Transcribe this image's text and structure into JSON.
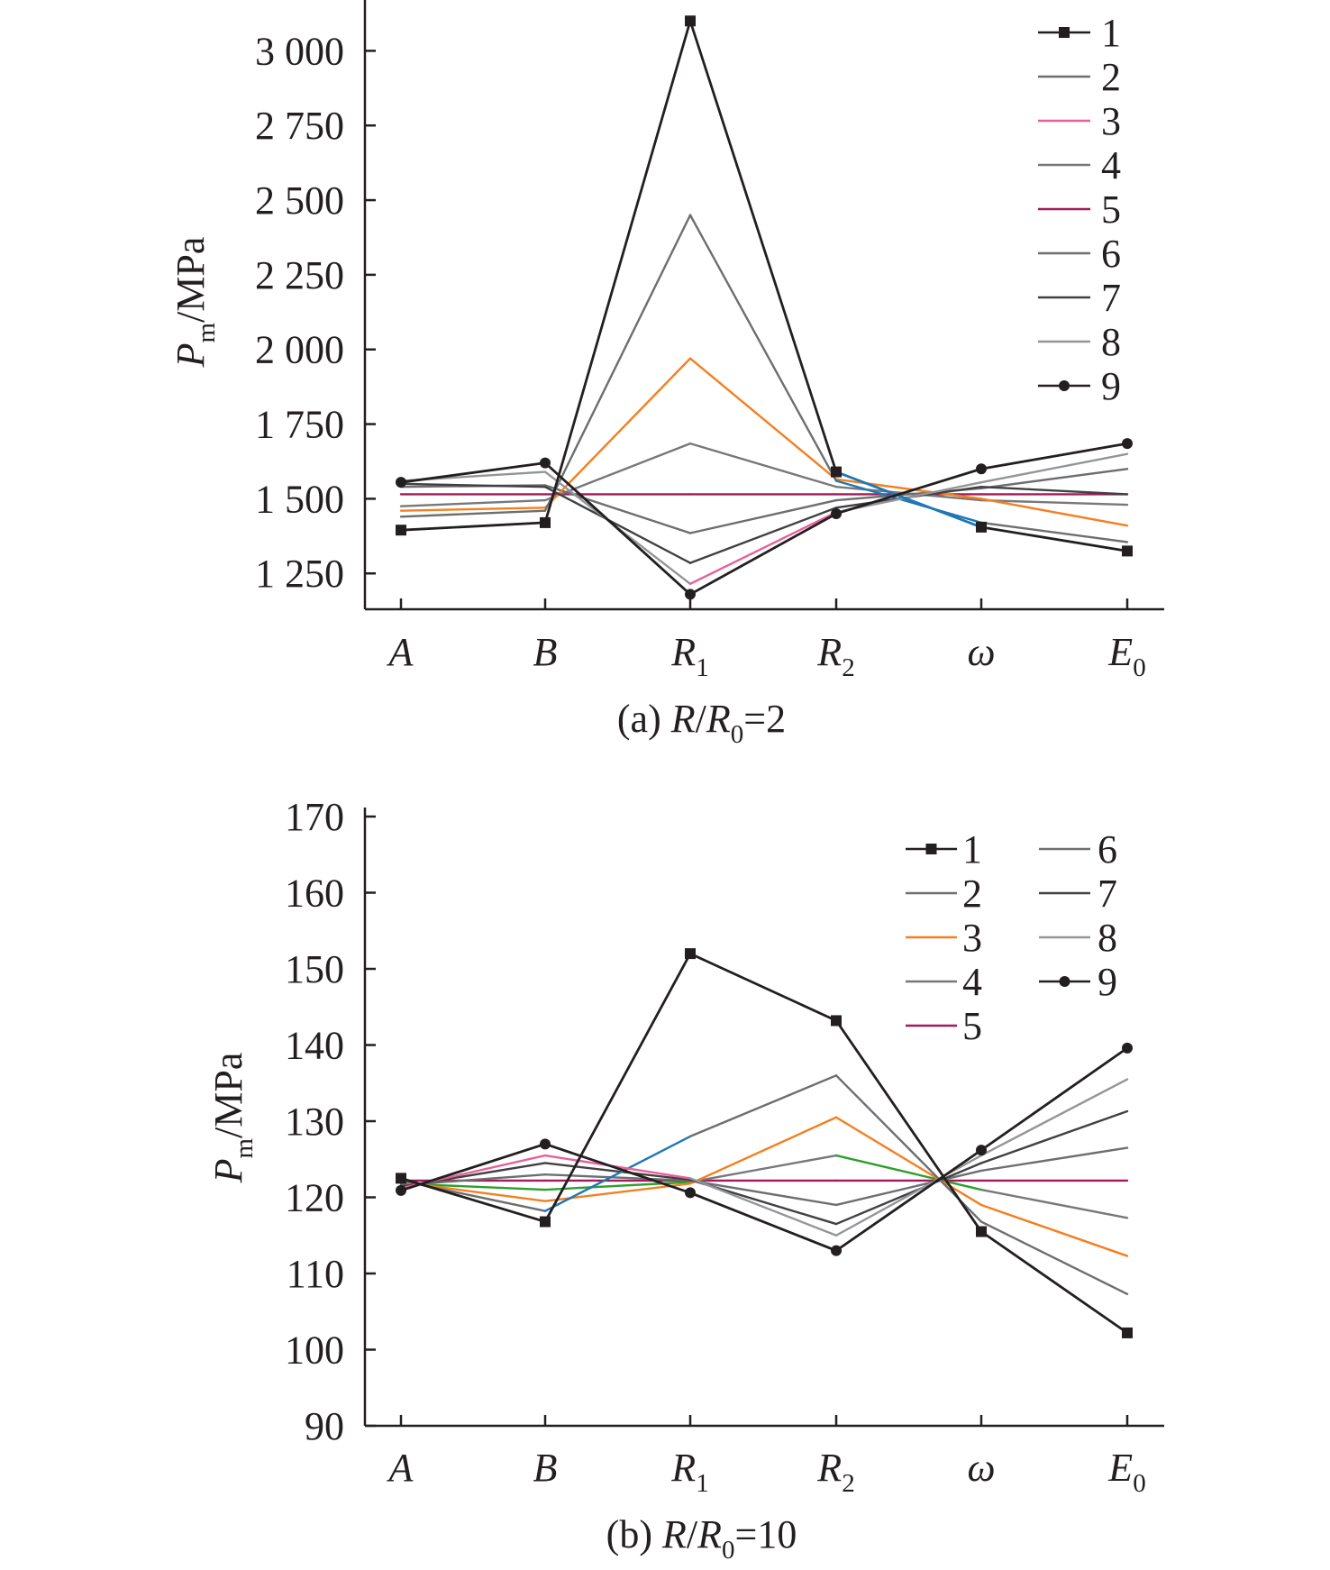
{
  "chart_data": [
    {
      "type": "line",
      "caption": {
        "prefix": "(a) ",
        "r": "R",
        "slash": "/",
        "r0": "R",
        "r0_sub": "0",
        "eq": "=2"
      },
      "ylabel": {
        "main": "P",
        "sub": "m",
        "unit": "/MPa"
      },
      "categories": [
        {
          "main": "A",
          "sub": ""
        },
        {
          "main": "B",
          "sub": ""
        },
        {
          "main": "R",
          "sub": "1"
        },
        {
          "main": "R",
          "sub": "2"
        },
        {
          "main": "ω",
          "sub": ""
        },
        {
          "main": "E",
          "sub": "0"
        }
      ],
      "ylim": [
        1130,
        3140
      ],
      "yticks": [
        1250,
        1500,
        1750,
        2000,
        2250,
        2500,
        2750,
        3000
      ],
      "ytick_labels": [
        "1 250",
        "1 500",
        "1 750",
        "2 000",
        "2 250",
        "2 500",
        "2 750",
        "3 000"
      ],
      "legend": {
        "placement": "top-right",
        "columns": 1
      },
      "series": [
        {
          "name": "1",
          "marker": "square",
          "color": "#231f20",
          "segment_colors": [
            "#231f20",
            "#231f20",
            "#231f20",
            "#1f77b4",
            "#231f20"
          ],
          "values": [
            1395,
            1420,
            3100,
            1590,
            1405,
            1325
          ]
        },
        {
          "name": "2",
          "marker": "none",
          "color": "#6d6e71",
          "segment_colors": [
            "#6d6e71",
            "#6d6e71",
            "#6d6e71",
            "#1f77b4",
            "#6d6e71"
          ],
          "values": [
            1440,
            1460,
            2450,
            1560,
            1420,
            1355
          ]
        },
        {
          "name": "3",
          "marker": "none",
          "color": "#e8609a",
          "segment_colors": [
            "#f47f20",
            "#f47f20",
            "#f47f20",
            "#f47f20",
            "#f47f20"
          ],
          "values": [
            1460,
            1470,
            1970,
            1565,
            1500,
            1410
          ]
        },
        {
          "name": "4",
          "marker": "none",
          "color": "#77787b",
          "segment_colors": [
            "#77787b",
            "#77787b",
            "#77787b",
            "#77787b",
            "#77787b"
          ],
          "values": [
            1475,
            1495,
            1685,
            1540,
            1495,
            1480
          ]
        },
        {
          "name": "5",
          "marker": "none",
          "color": "#a3195b",
          "segment_colors": [
            "#a3195b",
            "#a3195b",
            "#a3195b",
            "#a3195b",
            "#a3195b"
          ],
          "values": [
            1515,
            1515,
            1515,
            1515,
            1515,
            1515
          ]
        },
        {
          "name": "6",
          "marker": "none",
          "color": "#6d6e71",
          "segment_colors": [
            "#6d6e71",
            "#6d6e71",
            "#6d6e71",
            "#6d6e71",
            "#6d6e71"
          ],
          "values": [
            1540,
            1545,
            1385,
            1495,
            1535,
            1600
          ]
        },
        {
          "name": "7",
          "marker": "none",
          "color": "#414042",
          "segment_colors": [
            "#414042",
            "#414042",
            "#414042",
            "#414042",
            "#414042"
          ],
          "values": [
            1550,
            1540,
            1285,
            1470,
            1540,
            1515
          ]
        },
        {
          "name": "8",
          "marker": "none",
          "color": "#939598",
          "segment_colors": [
            "#939598",
            "#939598",
            "#e8609a",
            "#939598",
            "#939598"
          ],
          "values": [
            1560,
            1590,
            1215,
            1455,
            1555,
            1650
          ]
        },
        {
          "name": "9",
          "marker": "circle",
          "color": "#231f20",
          "segment_colors": [
            "#231f20",
            "#231f20",
            "#231f20",
            "#231f20",
            "#231f20"
          ],
          "values": [
            1555,
            1620,
            1180,
            1450,
            1600,
            1685
          ]
        }
      ]
    },
    {
      "type": "line",
      "caption": {
        "prefix": "(b) ",
        "r": "R",
        "slash": "/",
        "r0": "R",
        "r0_sub": "0",
        "eq": "=10"
      },
      "ylabel": {
        "main": "P",
        "sub": "m",
        "unit": "/MPa"
      },
      "categories": [
        {
          "main": "A",
          "sub": ""
        },
        {
          "main": "B",
          "sub": ""
        },
        {
          "main": "R",
          "sub": "1"
        },
        {
          "main": "R",
          "sub": "2"
        },
        {
          "main": "ω",
          "sub": ""
        },
        {
          "main": "E",
          "sub": "0"
        }
      ],
      "ylim": [
        90,
        170
      ],
      "yticks": [
        90,
        100,
        110,
        120,
        130,
        140,
        150,
        160,
        170
      ],
      "ytick_labels": [
        "90",
        "100",
        "110",
        "120",
        "130",
        "140",
        "150",
        "160",
        "170"
      ],
      "legend": {
        "placement": "top-right",
        "columns": 2
      },
      "series": [
        {
          "name": "1",
          "marker": "square",
          "color": "#231f20",
          "segment_colors": [
            "#231f20",
            "#231f20",
            "#231f20",
            "#231f20",
            "#231f20"
          ],
          "values": [
            122.5,
            116.8,
            152.0,
            143.2,
            115.5,
            102.2
          ]
        },
        {
          "name": "2",
          "marker": "none",
          "color": "#6d6e71",
          "segment_colors": [
            "#6d6e71",
            "#1f77b4",
            "#6d6e71",
            "#6d6e71",
            "#6d6e71"
          ],
          "values": [
            122.2,
            118.2,
            128.0,
            136.0,
            116.8,
            107.3
          ]
        },
        {
          "name": "3",
          "marker": "none",
          "color": "#f47f20",
          "segment_colors": [
            "#f47f20",
            "#f47f20",
            "#f47f20",
            "#f47f20",
            "#f47f20"
          ],
          "values": [
            122.0,
            119.5,
            121.8,
            130.5,
            119.0,
            112.3
          ]
        },
        {
          "name": "4",
          "marker": "none",
          "color": "#77787b",
          "segment_colors": [
            "#2ca02c",
            "#2ca02c",
            "#77787b",
            "#2ca02c",
            "#77787b"
          ],
          "values": [
            121.8,
            121.0,
            122.0,
            125.5,
            121.0,
            117.3
          ]
        },
        {
          "name": "5",
          "marker": "none",
          "color": "#a3195b",
          "segment_colors": [
            "#a3195b",
            "#a3195b",
            "#a3195b",
            "#a3195b",
            "#a3195b"
          ],
          "values": [
            122.2,
            122.2,
            122.2,
            122.2,
            122.2,
            122.2
          ]
        },
        {
          "name": "6",
          "marker": "none",
          "color": "#6d6e71",
          "segment_colors": [
            "#6d6e71",
            "#6d6e71",
            "#6d6e71",
            "#6d6e71",
            "#6d6e71"
          ],
          "values": [
            121.6,
            123.0,
            122.2,
            119.0,
            123.5,
            126.5
          ]
        },
        {
          "name": "7",
          "marker": "none",
          "color": "#414042",
          "segment_colors": [
            "#414042",
            "#414042",
            "#414042",
            "#414042",
            "#414042"
          ],
          "values": [
            121.4,
            124.5,
            122.3,
            116.5,
            124.5,
            131.3
          ]
        },
        {
          "name": "8",
          "marker": "none",
          "color": "#939598",
          "segment_colors": [
            "#e8609a",
            "#e8609a",
            "#939598",
            "#939598",
            "#939598"
          ],
          "values": [
            121.2,
            125.5,
            122.5,
            115.0,
            125.5,
            135.5
          ]
        },
        {
          "name": "9",
          "marker": "circle",
          "color": "#231f20",
          "segment_colors": [
            "#231f20",
            "#231f20",
            "#231f20",
            "#231f20",
            "#231f20"
          ],
          "values": [
            120.9,
            127.0,
            120.6,
            113.0,
            126.2,
            139.6
          ]
        }
      ]
    }
  ]
}
